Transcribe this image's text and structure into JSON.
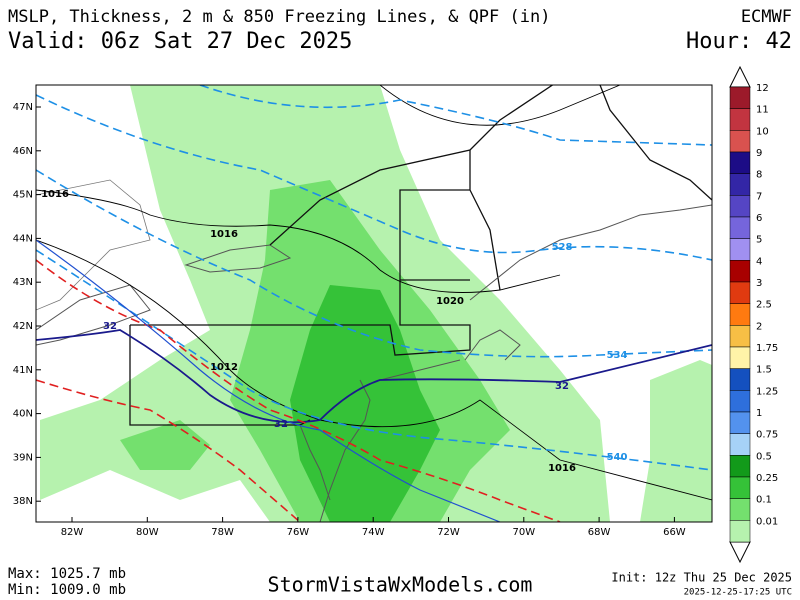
{
  "header": {
    "title": "MSLP, Thickness, 2 m & 850 Freezing Lines, & QPF (in)",
    "model": "ECMWF",
    "valid": "Valid: 06z Sat 27 Dec 2025",
    "hour": "Hour: 42"
  },
  "map": {
    "lat_labels": [
      "47N",
      "46N",
      "45N",
      "44N",
      "43N",
      "42N",
      "41N",
      "40N",
      "39N",
      "38N"
    ],
    "lon_labels": [
      "82W",
      "80W",
      "78W",
      "76W",
      "74W",
      "72W",
      "70W",
      "68W",
      "66W"
    ],
    "mslp_labels": [
      "1016",
      "1016",
      "1020",
      "1012",
      "1016"
    ],
    "thickness_labels": [
      "528",
      "534",
      "540"
    ],
    "freezing_labels": [
      "32",
      "32",
      "32"
    ]
  },
  "colorbar": {
    "labels": [
      12,
      11,
      10,
      9,
      8,
      7,
      6,
      5,
      4,
      3,
      2.5,
      2,
      1.75,
      1.5,
      1.25,
      1,
      0.75,
      0.5,
      0.25,
      0.1,
      0.01
    ],
    "colors": [
      "#9c1a2a",
      "#c23440",
      "#d9524f",
      "#1c0c86",
      "#3326a6",
      "#5545c4",
      "#7565dc",
      "#a090f0",
      "#a80000",
      "#e03a10",
      "#ff7a10",
      "#f7bf45",
      "#fff3a8",
      "#1450bf",
      "#2e6fdc",
      "#5392ee",
      "#a6d2f7",
      "#129a1a",
      "#35c238",
      "#74e06e",
      "#b6f2ae"
    ]
  },
  "footer": {
    "max": "Max: 1025.7 mb",
    "min": "Min: 1009.0 mb",
    "site": "StormVistaWxModels.com",
    "init": "Init: 12z Thu 25 Dec 2025",
    "timestamp": "2025-12-25-17:25 UTC"
  }
}
